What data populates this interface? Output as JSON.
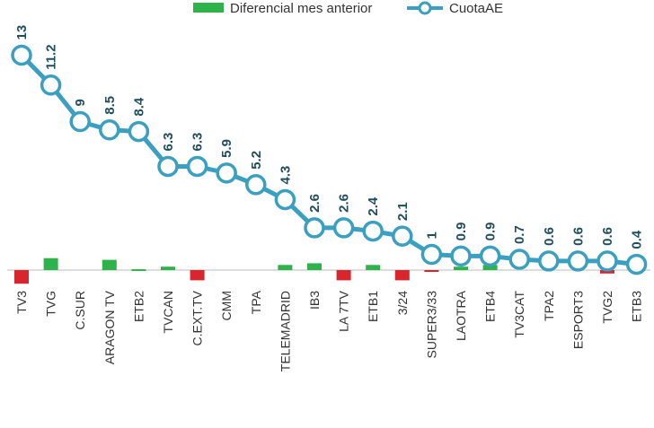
{
  "chart_data": {
    "type": "bar+line",
    "categories": [
      "TV3",
      "TVG",
      "C.SUR",
      "ARAGON TV",
      "ETB2",
      "TVCAN",
      "C.EXT.TV",
      "CMM",
      "TPA",
      "TELEMADRID",
      "IB3",
      "LA 7TV",
      "ETB1",
      "3/24",
      "SUPER3/33",
      "LAOTRA",
      "ETB4",
      "TV3CAT",
      "TPA2",
      "ESPORT3",
      "TVG2",
      "ETB3"
    ],
    "series": [
      {
        "name": "Diferencial mes anterior",
        "type": "bar",
        "color": "#2db34a",
        "negative_color": "#d9262e",
        "values": [
          -0.8,
          0.7,
          0,
          0.6,
          0.05,
          0.2,
          -0.6,
          0,
          0,
          0.3,
          0.4,
          -0.6,
          0.3,
          -0.6,
          -0.1,
          0.2,
          0.3,
          0,
          0,
          0,
          -0.2,
          0
        ]
      },
      {
        "name": "CuotaAE",
        "type": "line",
        "color": "#3a9fc0",
        "values": [
          13,
          11.2,
          9,
          8.5,
          8.4,
          6.3,
          6.3,
          5.9,
          5.2,
          4.3,
          2.6,
          2.6,
          2.4,
          2.1,
          1,
          0.9,
          0.9,
          0.7,
          0.6,
          0.6,
          0.6,
          0.4
        ]
      }
    ],
    "data_labels": [
      "13",
      "11.2",
      "9",
      "8.5",
      "8.4",
      "6.3",
      "6.3",
      "5.9",
      "5.2",
      "4.3",
      "2.6",
      "2.6",
      "2.4",
      "2.1",
      "1",
      "0.9",
      "0.9",
      "0.7",
      "0.6",
      "0.6",
      "0.6",
      "0.4"
    ],
    "legend": "top",
    "grid": false
  }
}
